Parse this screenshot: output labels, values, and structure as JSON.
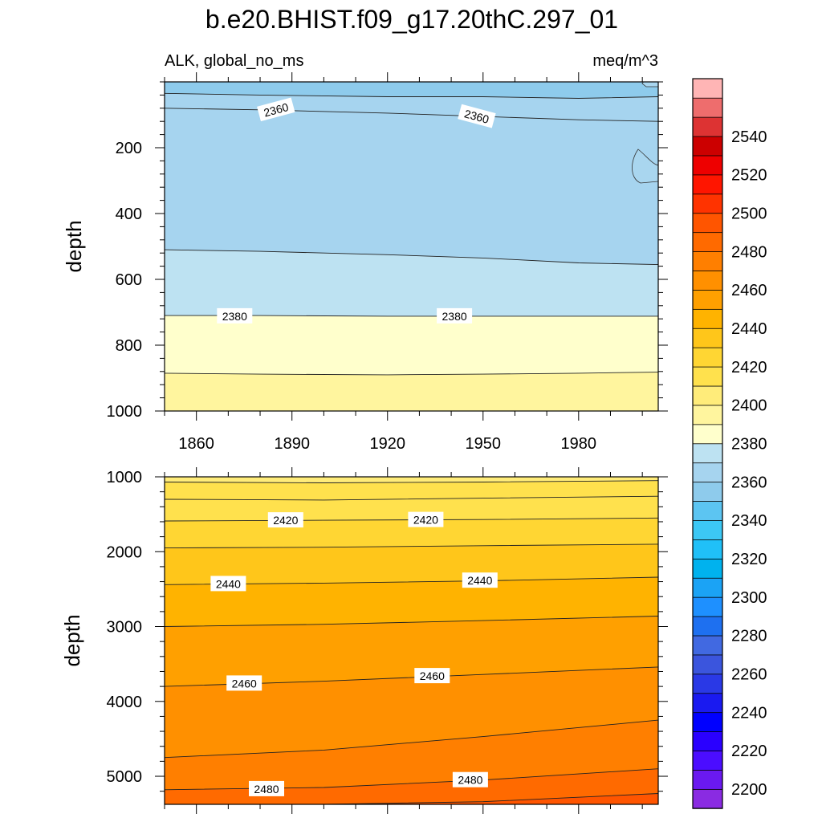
{
  "chart_data": {
    "type": "contour",
    "title": "b.e20.BHIST.f09_g17.20thC.297_01",
    "variable_label": "ALK, global_no_ms",
    "units_label": "meq/m^3",
    "x_range": [
      1850,
      2005
    ],
    "x_ticks": [
      1860,
      1890,
      1920,
      1950,
      1980
    ],
    "colorbar": {
      "levels": [
        2200,
        2210,
        2220,
        2230,
        2240,
        2250,
        2260,
        2270,
        2280,
        2290,
        2300,
        2310,
        2320,
        2330,
        2340,
        2350,
        2360,
        2370,
        2380,
        2390,
        2400,
        2410,
        2420,
        2430,
        2440,
        2450,
        2460,
        2470,
        2480,
        2490,
        2500,
        2510,
        2520,
        2530,
        2540,
        2550
      ],
      "colors": [
        "#8a2be2",
        "#6a19f0",
        "#4b0dff",
        "#2a00ff",
        "#0000ff",
        "#1a1af0",
        "#2a39e6",
        "#3b55dd",
        "#4169e1",
        "#1e70f0",
        "#1e90ff",
        "#1ba3f5",
        "#00b2ee",
        "#20c0f8",
        "#3cc8f5",
        "#5cc5f2",
        "#8ecbec",
        "#a6d4ef",
        "#bde2f2",
        "#ffffcc",
        "#fff59e",
        "#ffec7a",
        "#ffe14d",
        "#ffd633",
        "#ffc61a",
        "#ffb300",
        "#ffa000",
        "#ff9000",
        "#ff7f00",
        "#ff6a00",
        "#ff5500",
        "#ff3300",
        "#ff1500",
        "#ee0000",
        "#cc0000",
        "#dd3333",
        "#ee6d6d",
        "#ffb5b5"
      ],
      "tick_labels": [
        "2200",
        "2220",
        "2240",
        "2260",
        "2280",
        "2300",
        "2320",
        "2340",
        "2360",
        "2380",
        "2400",
        "2420",
        "2440",
        "2460",
        "2480",
        "2500",
        "2520",
        "2540"
      ]
    },
    "panels": [
      {
        "name": "upper",
        "ylabel": "depth",
        "y_range": [
          0,
          1000
        ],
        "y_reversed": true,
        "y_ticks": [
          "200",
          "400",
          "600",
          "800",
          "1000"
        ],
        "y_tick_values": [
          200,
          400,
          600,
          800,
          1000
        ],
        "contours": [
          {
            "level": 2360,
            "x": [
              1850,
              1880,
              1920,
              1950,
              1980,
              2005
            ],
            "depth": [
              35,
              40,
              45,
              45,
              50,
              45
            ]
          },
          {
            "level": 2360,
            "x": [
              1850,
              1880,
              1920,
              1950,
              1980,
              2005
            ],
            "depth": [
              80,
              85,
              95,
              105,
              115,
              120
            ]
          },
          {
            "level": 2370,
            "x": [
              1850,
              1880,
              1920,
              1950,
              1980,
              2005
            ],
            "depth": [
              510,
              515,
              525,
              535,
              550,
              555
            ]
          },
          {
            "level": 2380,
            "x": [
              1850,
              1880,
              1920,
              1950,
              1980,
              2005
            ],
            "depth": [
              710,
              710,
              712,
              712,
              712,
              712
            ]
          },
          {
            "level": 2390,
            "x": [
              1850,
              1880,
              1920,
              1950,
              1980,
              2005
            ],
            "depth": [
              885,
              888,
              890,
              888,
              885,
              882
            ]
          }
        ],
        "contour_labels": [
          {
            "text": "2360",
            "x": 1885,
            "depth": 85,
            "angle": -15
          },
          {
            "text": "2360",
            "x": 1948,
            "depth": 105,
            "angle": 15
          },
          {
            "text": "2380",
            "x": 1872,
            "depth": 712,
            "angle": 0
          },
          {
            "text": "2380",
            "x": 1941,
            "depth": 712,
            "angle": 0
          }
        ]
      },
      {
        "name": "lower",
        "ylabel": "depth",
        "y_range": [
          1000,
          5375
        ],
        "y_reversed": true,
        "y_ticks": [
          "1000",
          "2000",
          "3000",
          "4000",
          "5000"
        ],
        "y_tick_values": [
          1000,
          2000,
          3000,
          4000,
          5000
        ],
        "contours": [
          {
            "level": 2410,
            "x": [
              1850,
              1900,
              1950,
              2005
            ],
            "depth": [
              1070,
              1080,
              1070,
              1050
            ]
          },
          {
            "level": 2410,
            "x": [
              1850,
              1900,
              1950,
              2005
            ],
            "depth": [
              1300,
              1310,
              1285,
              1260
            ]
          },
          {
            "level": 2420,
            "x": [
              1850,
              1900,
              1950,
              2005
            ],
            "depth": [
              1590,
              1580,
              1570,
              1550
            ]
          },
          {
            "level": 2430,
            "x": [
              1850,
              1900,
              1950,
              2005
            ],
            "depth": [
              1950,
              1940,
              1920,
              1900
            ]
          },
          {
            "level": 2440,
            "x": [
              1850,
              1900,
              1950,
              2005
            ],
            "depth": [
              2440,
              2420,
              2390,
              2340
            ]
          },
          {
            "level": 2450,
            "x": [
              1850,
              1900,
              1950,
              2005
            ],
            "depth": [
              3000,
              2970,
              2920,
              2860
            ]
          },
          {
            "level": 2460,
            "x": [
              1850,
              1900,
              1950,
              2005
            ],
            "depth": [
              3800,
              3730,
              3640,
              3540
            ]
          },
          {
            "level": 2470,
            "x": [
              1850,
              1900,
              1950,
              2005
            ],
            "depth": [
              4750,
              4650,
              4470,
              4250
            ]
          },
          {
            "level": 2480,
            "x": [
              1850,
              1900,
              1950,
              2005
            ],
            "depth": [
              5180,
              5150,
              5050,
              4900
            ]
          },
          {
            "level": 2490,
            "x": [
              1850,
              1900,
              1950,
              2005
            ],
            "depth": [
              5375,
              5375,
              5340,
              5230
            ]
          }
        ],
        "contour_labels": [
          {
            "text": "2420",
            "x": 1888,
            "depth": 1580,
            "angle": 0
          },
          {
            "text": "2420",
            "x": 1932,
            "depth": 1575,
            "angle": 0
          },
          {
            "text": "2440",
            "x": 1870,
            "depth": 2430,
            "angle": 0
          },
          {
            "text": "2440",
            "x": 1949,
            "depth": 2385,
            "angle": 0
          },
          {
            "text": "2460",
            "x": 1875,
            "depth": 3760,
            "angle": 0
          },
          {
            "text": "2460",
            "x": 1934,
            "depth": 3660,
            "angle": 0
          },
          {
            "text": "2480",
            "x": 1882,
            "depth": 5170,
            "angle": 0
          },
          {
            "text": "2480",
            "x": 1946,
            "depth": 5050,
            "angle": 0
          }
        ]
      }
    ]
  }
}
